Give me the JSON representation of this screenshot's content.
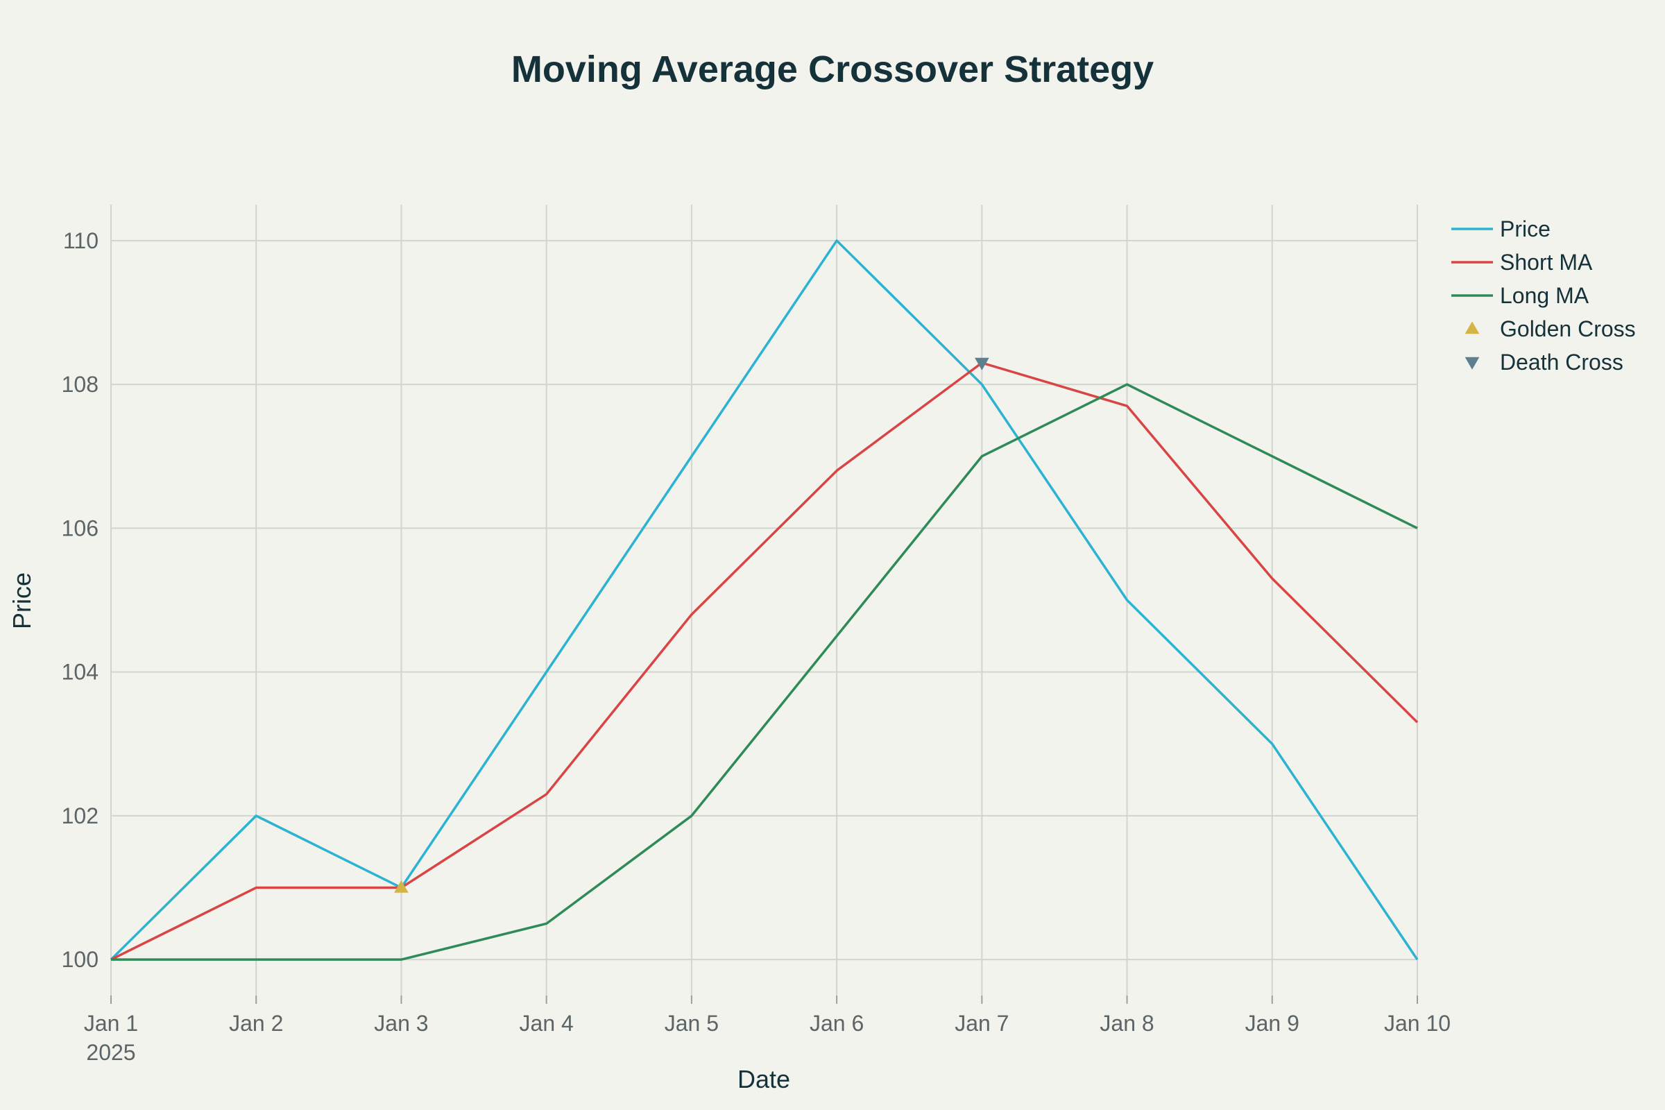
{
  "chart_data": {
    "type": "line",
    "title": "Moving Average Crossover Strategy",
    "xlabel": "Date",
    "ylabel": "Price",
    "x": [
      "2025-01-01",
      "2025-01-02",
      "2025-01-03",
      "2025-01-04",
      "2025-01-05",
      "2025-01-06",
      "2025-01-07",
      "2025-01-08",
      "2025-01-09",
      "2025-01-10"
    ],
    "x_tick_labels": [
      "Jan 1",
      "Jan 2",
      "Jan 3",
      "Jan 4",
      "Jan 5",
      "Jan 6",
      "Jan 7",
      "Jan 8",
      "Jan 9",
      "Jan 10"
    ],
    "x_year_label": "2025",
    "ylim": [
      99.5,
      110.5
    ],
    "y_ticks": [
      100,
      102,
      104,
      106,
      108,
      110
    ],
    "grid": true,
    "legend_position": "top-right",
    "series": [
      {
        "name": "Price",
        "color": "#2bb3d1",
        "values": [
          100,
          102,
          101,
          104,
          107,
          110,
          108,
          105,
          103,
          100
        ]
      },
      {
        "name": "Short MA",
        "color": "#d94545",
        "values": [
          100,
          101,
          101,
          102.3,
          104.8,
          106.8,
          108.3,
          107.7,
          105.3,
          103.3
        ]
      },
      {
        "name": "Long MA",
        "color": "#2e8b57",
        "values": [
          100,
          100,
          100,
          100.5,
          102,
          104.5,
          107,
          108,
          107,
          106
        ]
      }
    ],
    "markers": [
      {
        "name": "Golden Cross",
        "symbol": "triangle-up",
        "color": "#d4b445",
        "points": [
          {
            "x": "2025-01-03",
            "y": 101
          }
        ]
      },
      {
        "name": "Death Cross",
        "symbol": "triangle-down",
        "color": "#5d7f8f",
        "points": [
          {
            "x": "2025-01-07",
            "y": 108.3
          }
        ]
      }
    ]
  }
}
